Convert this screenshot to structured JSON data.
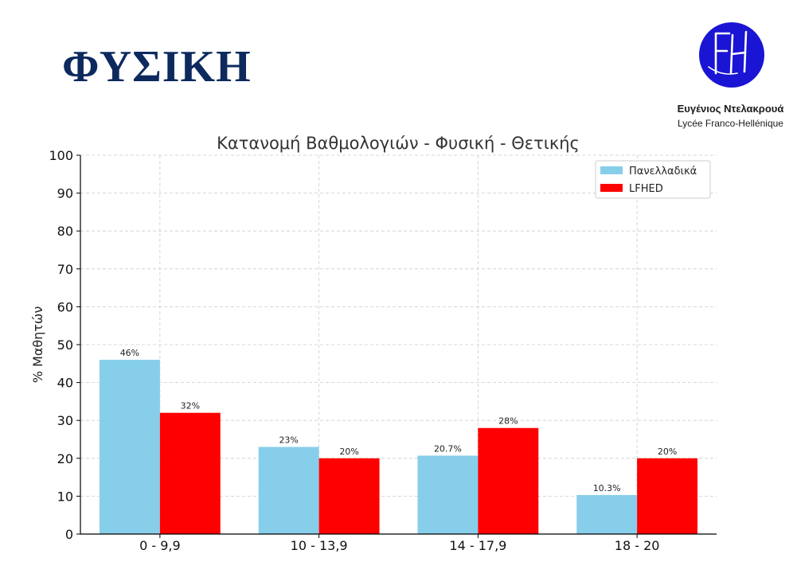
{
  "page": {
    "title": "ΦΥΣΙΚΗ",
    "logo": {
      "monogram": "FH",
      "name": "Ευγένιος Ντελακρουά",
      "school": "Lycée Franco-Hellénique",
      "color": "#1a14d4"
    }
  },
  "chart_data": {
    "type": "bar",
    "title": "Κατανομή Βαθμολογιών - Φυσική - Θετικής",
    "xlabel": "",
    "ylabel": "% Μαθητών",
    "categories": [
      "0 - 9,9",
      "10 - 13,9",
      "14 - 17,9",
      "18 - 20"
    ],
    "series": [
      {
        "name": "Πανελλαδικά",
        "values": [
          46,
          23,
          20.7,
          10.3
        ],
        "labels": [
          "46%",
          "23%",
          "20.7%",
          "10.3%"
        ],
        "color": "#87ceeb"
      },
      {
        "name": "LFHED",
        "values": [
          32,
          20,
          28,
          20
        ],
        "labels": [
          "32%",
          "20%",
          "28%",
          "20%"
        ],
        "color": "#ff0000"
      }
    ],
    "ylim": [
      0,
      100
    ],
    "yticks": [
      0,
      10,
      20,
      30,
      40,
      50,
      60,
      70,
      80,
      90,
      100
    ],
    "grid": true,
    "legend": "top-right"
  }
}
